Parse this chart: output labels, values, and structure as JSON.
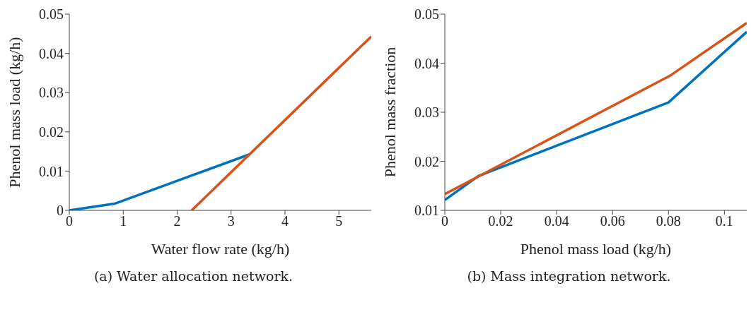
{
  "chart_data": [
    {
      "type": "line",
      "xlabel": "Water flow rate (kg/h)",
      "ylabel": "Phenol mass load (kg/h)",
      "xlim": [
        0,
        5.6
      ],
      "xticks": [
        0,
        1,
        2,
        3,
        4,
        5
      ],
      "ylim": [
        0,
        0.05
      ],
      "yticks": [
        0,
        0.01,
        0.02,
        0.03,
        0.04,
        0.05
      ],
      "grid": false,
      "legend": false,
      "annotations": [
        "(a) Water allocation network."
      ],
      "series": [
        {
          "color": "#0072bd",
          "x": [
            0,
            0.84,
            3.35
          ],
          "values": [
            0,
            0.0017,
            0.0143
          ]
        },
        {
          "color": "#d95319",
          "x": [
            2.27,
            5.6
          ],
          "values": [
            0,
            0.0443
          ]
        }
      ]
    },
    {
      "type": "line",
      "xlabel": "Phenol mass load (kg/h)",
      "ylabel": "Phenol mass fraction",
      "xlim": [
        0,
        0.108
      ],
      "xticks": [
        0,
        0.02,
        0.04,
        0.06,
        0.08,
        0.1
      ],
      "ylim": [
        0.01,
        0.05
      ],
      "yticks": [
        0.01,
        0.02,
        0.03,
        0.04,
        0.05
      ],
      "grid": false,
      "legend": false,
      "annotations": [
        "(b) Mass integration network."
      ],
      "series": [
        {
          "color": "#0072bd",
          "x": [
            0,
            0.012,
            0.08,
            0.108
          ],
          "values": [
            0.0121,
            0.017,
            0.032,
            0.0464
          ]
        },
        {
          "color": "#d95319",
          "x": [
            0,
            0.081,
            0.108
          ],
          "values": [
            0.0133,
            0.0376,
            0.0482
          ]
        }
      ]
    }
  ]
}
